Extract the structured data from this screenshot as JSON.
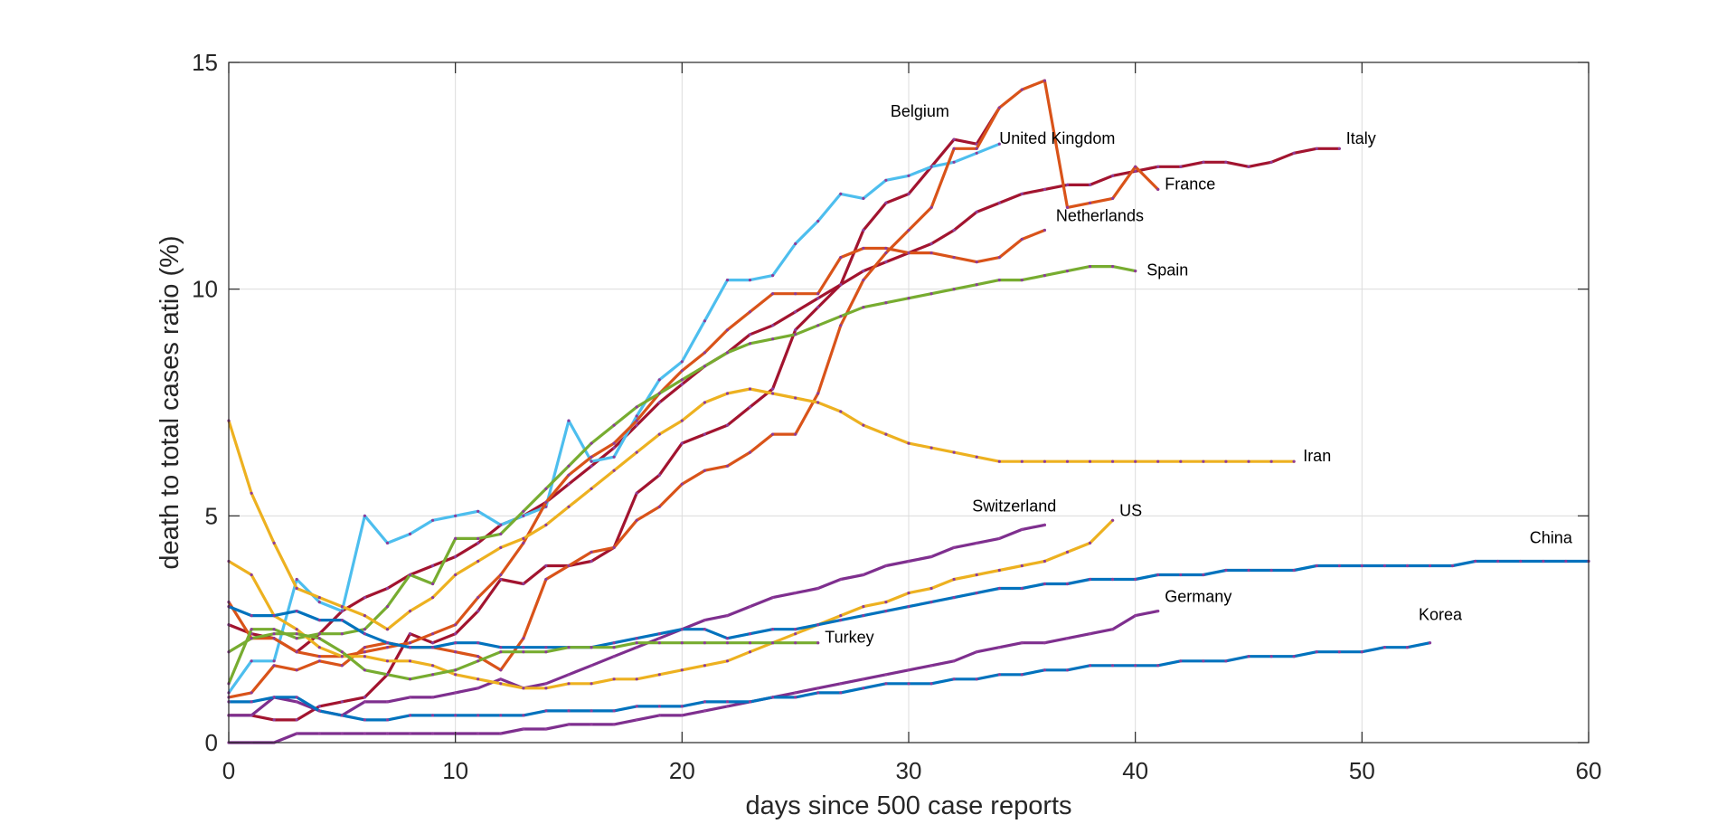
{
  "chart_data": {
    "type": "line",
    "title": "",
    "xlabel": "days since 500 case reports",
    "ylabel": "death to total cases ratio (%)",
    "xlim": [
      0,
      60
    ],
    "ylim": [
      0,
      15
    ],
    "xticks": [
      0,
      10,
      20,
      30,
      40,
      50,
      60
    ],
    "yticks": [
      0,
      5,
      10,
      15
    ],
    "grid": true,
    "legend": "none",
    "series": [
      {
        "name": "Italy",
        "color": "#A2142F",
        "x": [
          0,
          1,
          2,
          3,
          4,
          5,
          6,
          7,
          8,
          9,
          10,
          11,
          12,
          13,
          14,
          15,
          16,
          17,
          18,
          19,
          20,
          21,
          22,
          23,
          24,
          25,
          26,
          27,
          28,
          29,
          30,
          31,
          32,
          33,
          34,
          35,
          36,
          37,
          38,
          39,
          40,
          41,
          42,
          43,
          44,
          45,
          46,
          47,
          48,
          49
        ],
        "y": [
          2.6,
          2.4,
          2.3,
          2.0,
          2.4,
          2.9,
          3.2,
          3.4,
          3.7,
          3.9,
          4.1,
          4.4,
          4.8,
          5.0,
          5.3,
          5.7,
          6.1,
          6.5,
          7.0,
          7.5,
          7.9,
          8.3,
          8.6,
          9.0,
          9.2,
          9.5,
          9.8,
          10.1,
          10.4,
          10.6,
          10.8,
          11.0,
          11.3,
          11.7,
          11.9,
          12.1,
          12.2,
          12.3,
          12.3,
          12.5,
          12.6,
          12.7,
          12.7,
          12.8,
          12.8,
          12.7,
          12.8,
          13.0,
          13.1,
          13.1
        ]
      },
      {
        "name": "Belgium",
        "color": "#A2142F",
        "x": [
          0,
          1,
          2,
          3,
          4,
          5,
          6,
          7,
          8,
          9,
          10,
          11,
          12,
          13,
          14,
          15,
          16,
          17,
          18,
          19,
          20,
          21,
          22,
          23,
          24,
          25,
          26,
          27,
          28,
          29,
          30,
          31,
          32,
          33,
          34
        ],
        "y": [
          0.6,
          0.6,
          0.5,
          0.5,
          0.8,
          0.9,
          1.0,
          1.5,
          2.4,
          2.2,
          2.4,
          2.9,
          3.6,
          3.5,
          3.9,
          3.9,
          4.0,
          4.3,
          5.5,
          5.9,
          6.6,
          6.8,
          7.0,
          7.4,
          7.8,
          9.1,
          9.6,
          10.1,
          11.3,
          11.9,
          12.1,
          12.7,
          13.3,
          13.2,
          14.0
        ]
      },
      {
        "name": "United Kingdom",
        "color": "#4DBEEE",
        "x": [
          0,
          1,
          2,
          3,
          4,
          5,
          6,
          7,
          8,
          9,
          10,
          11,
          12,
          13,
          14,
          15,
          16,
          17,
          18,
          19,
          20,
          21,
          22,
          23,
          24,
          25,
          26,
          27,
          28,
          29,
          30,
          31,
          32,
          33,
          34
        ],
        "y": [
          1.1,
          1.8,
          1.8,
          3.6,
          3.1,
          2.9,
          5.0,
          4.4,
          4.6,
          4.9,
          5.0,
          5.1,
          4.8,
          5.0,
          5.2,
          7.1,
          6.2,
          6.3,
          7.2,
          8.0,
          8.4,
          9.3,
          10.2,
          10.2,
          10.3,
          11.0,
          11.5,
          12.1,
          12.0,
          12.4,
          12.5,
          12.7,
          12.8,
          13.0,
          13.2
        ]
      },
      {
        "name": "France",
        "color": "#D95319",
        "x": [
          0,
          1,
          2,
          3,
          4,
          5,
          6,
          7,
          8,
          9,
          10,
          11,
          12,
          13,
          14,
          15,
          16,
          17,
          18,
          19,
          20,
          21,
          22,
          23,
          24,
          25,
          26,
          27,
          28,
          29,
          30,
          31,
          32,
          33,
          34,
          35,
          36,
          37,
          38,
          39,
          40,
          41
        ],
        "y": [
          1.0,
          1.1,
          1.7,
          1.6,
          1.8,
          1.7,
          2.1,
          2.2,
          2.1,
          2.1,
          2.0,
          1.9,
          1.6,
          2.3,
          3.6,
          3.9,
          4.2,
          4.3,
          4.9,
          5.2,
          5.7,
          6.0,
          6.1,
          6.4,
          6.8,
          6.8,
          7.7,
          9.2,
          10.2,
          10.8,
          11.3,
          11.8,
          13.1,
          13.1,
          14.0,
          14.4,
          14.6,
          11.8,
          11.9,
          12.0,
          12.7,
          12.2
        ]
      },
      {
        "name": "Netherlands",
        "color": "#D95319",
        "x": [
          0,
          1,
          2,
          3,
          4,
          5,
          6,
          7,
          8,
          9,
          10,
          11,
          12,
          13,
          14,
          15,
          16,
          17,
          18,
          19,
          20,
          21,
          22,
          23,
          24,
          25,
          26,
          27,
          28,
          29,
          30,
          31,
          32,
          33,
          34,
          35,
          36
        ],
        "y": [
          3.1,
          2.3,
          2.3,
          2.0,
          1.9,
          1.9,
          2.0,
          2.1,
          2.2,
          2.4,
          2.6,
          3.2,
          3.7,
          4.4,
          5.3,
          5.9,
          6.3,
          6.6,
          7.1,
          7.7,
          8.2,
          8.6,
          9.1,
          9.5,
          9.9,
          9.9,
          9.9,
          10.7,
          10.9,
          10.9,
          10.8,
          10.8,
          10.7,
          10.6,
          10.7,
          11.1,
          11.3
        ]
      },
      {
        "name": "Spain",
        "color": "#77AC30",
        "x": [
          0,
          1,
          2,
          3,
          4,
          5,
          6,
          7,
          8,
          9,
          10,
          11,
          12,
          13,
          14,
          15,
          16,
          17,
          18,
          19,
          20,
          21,
          22,
          23,
          24,
          25,
          26,
          27,
          28,
          29,
          30,
          31,
          32,
          33,
          34,
          35,
          36,
          37,
          38,
          39,
          40
        ],
        "y": [
          1.3,
          2.5,
          2.5,
          2.3,
          2.4,
          2.4,
          2.5,
          3.0,
          3.7,
          3.5,
          4.5,
          4.5,
          4.6,
          5.1,
          5.6,
          6.1,
          6.6,
          7.0,
          7.4,
          7.7,
          8.0,
          8.3,
          8.6,
          8.8,
          8.9,
          9.0,
          9.2,
          9.4,
          9.6,
          9.7,
          9.8,
          9.9,
          10.0,
          10.1,
          10.2,
          10.2,
          10.3,
          10.4,
          10.5,
          10.5,
          10.4
        ]
      },
      {
        "name": "Iran",
        "color": "#EDB120",
        "x": [
          0,
          1,
          2,
          3,
          4,
          5,
          6,
          7,
          8,
          9,
          10,
          11,
          12,
          13,
          14,
          15,
          16,
          17,
          18,
          19,
          20,
          21,
          22,
          23,
          24,
          25,
          26,
          27,
          28,
          29,
          30,
          31,
          32,
          33,
          34,
          35,
          36,
          37,
          38,
          39,
          40,
          41,
          42,
          43,
          44,
          45,
          46,
          47
        ],
        "y": [
          7.1,
          5.5,
          4.4,
          3.4,
          3.2,
          3.0,
          2.8,
          2.5,
          2.9,
          3.2,
          3.7,
          4.0,
          4.3,
          4.5,
          4.8,
          5.2,
          5.6,
          6.0,
          6.4,
          6.8,
          7.1,
          7.5,
          7.7,
          7.8,
          7.7,
          7.6,
          7.5,
          7.3,
          7.0,
          6.8,
          6.6,
          6.5,
          6.4,
          6.3,
          6.2,
          6.2,
          6.2,
          6.2,
          6.2,
          6.2,
          6.2,
          6.2,
          6.2,
          6.2,
          6.2,
          6.2,
          6.2,
          6.2
        ]
      },
      {
        "name": "Switzerland",
        "color": "#7E2F8E",
        "x": [
          0,
          1,
          2,
          3,
          4,
          5,
          6,
          7,
          8,
          9,
          10,
          11,
          12,
          13,
          14,
          15,
          16,
          17,
          18,
          19,
          20,
          21,
          22,
          23,
          24,
          25,
          26,
          27,
          28,
          29,
          30,
          31,
          32,
          33,
          34,
          35,
          36
        ],
        "y": [
          0.6,
          0.6,
          1.0,
          0.9,
          0.7,
          0.6,
          0.9,
          0.9,
          1.0,
          1.0,
          1.1,
          1.2,
          1.4,
          1.2,
          1.3,
          1.5,
          1.7,
          1.9,
          2.1,
          2.3,
          2.5,
          2.7,
          2.8,
          3.0,
          3.2,
          3.3,
          3.4,
          3.6,
          3.7,
          3.9,
          4.0,
          4.1,
          4.3,
          4.4,
          4.5,
          4.7,
          4.8
        ]
      },
      {
        "name": "US",
        "color": "#EDB120",
        "x": [
          0,
          1,
          2,
          3,
          4,
          5,
          6,
          7,
          8,
          9,
          10,
          11,
          12,
          13,
          14,
          15,
          16,
          17,
          18,
          19,
          20,
          21,
          22,
          23,
          24,
          25,
          26,
          27,
          28,
          29,
          30,
          31,
          32,
          33,
          34,
          35,
          36,
          37,
          38,
          39
        ],
        "y": [
          4.0,
          3.7,
          2.8,
          2.5,
          2.1,
          1.9,
          1.9,
          1.8,
          1.8,
          1.7,
          1.5,
          1.4,
          1.3,
          1.2,
          1.2,
          1.3,
          1.3,
          1.4,
          1.4,
          1.5,
          1.6,
          1.7,
          1.8,
          2.0,
          2.2,
          2.4,
          2.6,
          2.8,
          3.0,
          3.1,
          3.3,
          3.4,
          3.6,
          3.7,
          3.8,
          3.9,
          4.0,
          4.2,
          4.4,
          4.9
        ]
      },
      {
        "name": "China",
        "color": "#0072BD",
        "x": [
          0,
          1,
          2,
          3,
          4,
          5,
          6,
          7,
          8,
          9,
          10,
          11,
          12,
          13,
          14,
          15,
          16,
          17,
          18,
          19,
          20,
          21,
          22,
          23,
          24,
          25,
          26,
          27,
          28,
          29,
          30,
          31,
          32,
          33,
          34,
          35,
          36,
          37,
          38,
          39,
          40,
          41,
          42,
          43,
          44,
          45,
          46,
          47,
          48,
          49,
          50,
          51,
          52,
          53,
          54,
          55,
          56,
          57,
          58,
          59,
          60
        ],
        "y": [
          3.0,
          2.8,
          2.8,
          2.9,
          2.7,
          2.7,
          2.4,
          2.2,
          2.1,
          2.1,
          2.2,
          2.2,
          2.1,
          2.1,
          2.1,
          2.1,
          2.1,
          2.2,
          2.3,
          2.4,
          2.5,
          2.5,
          2.3,
          2.4,
          2.5,
          2.5,
          2.6,
          2.7,
          2.8,
          2.9,
          3.0,
          3.1,
          3.2,
          3.3,
          3.4,
          3.4,
          3.5,
          3.5,
          3.6,
          3.6,
          3.6,
          3.7,
          3.7,
          3.7,
          3.8,
          3.8,
          3.8,
          3.8,
          3.9,
          3.9,
          3.9,
          3.9,
          3.9,
          3.9,
          3.9,
          4.0,
          4.0,
          4.0,
          4.0,
          4.0,
          4.0
        ]
      },
      {
        "name": "Germany",
        "color": "#7E2F8E",
        "x": [
          0,
          1,
          2,
          3,
          4,
          5,
          6,
          7,
          8,
          9,
          10,
          11,
          12,
          13,
          14,
          15,
          16,
          17,
          18,
          19,
          20,
          21,
          22,
          23,
          24,
          25,
          26,
          27,
          28,
          29,
          30,
          31,
          32,
          33,
          34,
          35,
          36,
          37,
          38,
          39,
          40,
          41
        ],
        "y": [
          0.0,
          0.0,
          0.0,
          0.2,
          0.2,
          0.2,
          0.2,
          0.2,
          0.2,
          0.2,
          0.2,
          0.2,
          0.2,
          0.3,
          0.3,
          0.4,
          0.4,
          0.4,
          0.5,
          0.6,
          0.6,
          0.7,
          0.8,
          0.9,
          1.0,
          1.1,
          1.2,
          1.3,
          1.4,
          1.5,
          1.6,
          1.7,
          1.8,
          2.0,
          2.1,
          2.2,
          2.2,
          2.3,
          2.4,
          2.5,
          2.8,
          2.9
        ]
      },
      {
        "name": "Korea",
        "color": "#0072BD",
        "x": [
          0,
          1,
          2,
          3,
          4,
          5,
          6,
          7,
          8,
          9,
          10,
          11,
          12,
          13,
          14,
          15,
          16,
          17,
          18,
          19,
          20,
          21,
          22,
          23,
          24,
          25,
          26,
          27,
          28,
          29,
          30,
          31,
          32,
          33,
          34,
          35,
          36,
          37,
          38,
          39,
          40,
          41,
          42,
          43,
          44,
          45,
          46,
          47,
          48,
          49,
          50,
          51,
          52,
          53
        ],
        "y": [
          0.9,
          0.9,
          1.0,
          1.0,
          0.7,
          0.6,
          0.5,
          0.5,
          0.6,
          0.6,
          0.6,
          0.6,
          0.6,
          0.6,
          0.7,
          0.7,
          0.7,
          0.7,
          0.8,
          0.8,
          0.8,
          0.9,
          0.9,
          0.9,
          1.0,
          1.0,
          1.1,
          1.1,
          1.2,
          1.3,
          1.3,
          1.3,
          1.4,
          1.4,
          1.5,
          1.5,
          1.6,
          1.6,
          1.7,
          1.7,
          1.7,
          1.7,
          1.8,
          1.8,
          1.8,
          1.9,
          1.9,
          1.9,
          2.0,
          2.0,
          2.0,
          2.1,
          2.1,
          2.2
        ]
      },
      {
        "name": "Turkey",
        "color": "#77AC30",
        "x": [
          0,
          1,
          2,
          3,
          4,
          5,
          6,
          7,
          8,
          9,
          10,
          11,
          12,
          13,
          14,
          15,
          16,
          17,
          18,
          19,
          20,
          21,
          22,
          23,
          24,
          25,
          26
        ],
        "y": [
          2.0,
          2.3,
          2.4,
          2.4,
          2.3,
          2.0,
          1.6,
          1.5,
          1.4,
          1.5,
          1.6,
          1.8,
          2.0,
          2.0,
          2.0,
          2.1,
          2.1,
          2.1,
          2.2,
          2.2,
          2.2,
          2.2,
          2.2,
          2.2,
          2.2,
          2.2,
          2.2
        ]
      }
    ],
    "annotations": [
      {
        "text": "Italy",
        "x": 49.3,
        "y": 13.2
      },
      {
        "text": "Belgium",
        "x": 29.2,
        "y": 13.8
      },
      {
        "text": "United Kingdom",
        "x": 34.0,
        "y": 13.2
      },
      {
        "text": "France",
        "x": 41.3,
        "y": 12.2
      },
      {
        "text": "Netherlands",
        "x": 36.5,
        "y": 11.5
      },
      {
        "text": "Spain",
        "x": 40.5,
        "y": 10.3
      },
      {
        "text": "Iran",
        "x": 47.4,
        "y": 6.2
      },
      {
        "text": "Switzerland",
        "x": 32.8,
        "y": 5.1
      },
      {
        "text": "US",
        "x": 39.3,
        "y": 5.0
      },
      {
        "text": "China",
        "x": 57.4,
        "y": 4.4
      },
      {
        "text": "Germany",
        "x": 41.3,
        "y": 3.1
      },
      {
        "text": "Korea",
        "x": 52.5,
        "y": 2.7
      },
      {
        "text": "Turkey",
        "x": 26.3,
        "y": 2.2
      }
    ]
  }
}
